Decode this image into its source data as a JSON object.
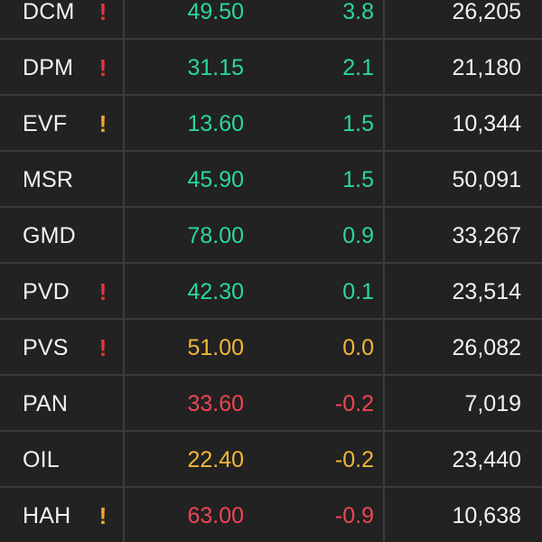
{
  "colors": {
    "up": "#2bd6a0",
    "ref": "#f2b63a",
    "down": "#ef4552",
    "flag_red": "#e8343f",
    "flag_yellow": "#f0a92a"
  },
  "rows": [
    {
      "symbol": "DCM",
      "flag": "!",
      "flag_color": "red",
      "price": "49.50",
      "change": "3.8",
      "volume": "26,205",
      "trend": "up"
    },
    {
      "symbol": "DPM",
      "flag": "!",
      "flag_color": "red",
      "price": "31.15",
      "change": "2.1",
      "volume": "21,180",
      "trend": "up"
    },
    {
      "symbol": "EVF",
      "flag": "!",
      "flag_color": "yellow",
      "price": "13.60",
      "change": "1.5",
      "volume": "10,344",
      "trend": "up"
    },
    {
      "symbol": "MSR",
      "flag": "",
      "flag_color": "",
      "price": "45.90",
      "change": "1.5",
      "volume": "50,091",
      "trend": "up"
    },
    {
      "symbol": "GMD",
      "flag": "",
      "flag_color": "",
      "price": "78.00",
      "change": "0.9",
      "volume": "33,267",
      "trend": "up"
    },
    {
      "symbol": "PVD",
      "flag": "!",
      "flag_color": "red",
      "price": "42.30",
      "change": "0.1",
      "volume": "23,514",
      "trend": "up"
    },
    {
      "symbol": "PVS",
      "flag": "!",
      "flag_color": "red",
      "price": "51.00",
      "change": "0.0",
      "volume": "26,082",
      "trend": "ref"
    },
    {
      "symbol": "PAN",
      "flag": "",
      "flag_color": "",
      "price": "33.60",
      "change": "-0.2",
      "volume": "7,019",
      "trend": "down"
    },
    {
      "symbol": "OIL",
      "flag": "",
      "flag_color": "",
      "price": "22.40",
      "change": "-0.2",
      "volume": "23,440",
      "trend": "ref"
    },
    {
      "symbol": "HAH",
      "flag": "!",
      "flag_color": "yellow",
      "price": "63.00",
      "change": "-0.9",
      "volume": "10,638",
      "trend": "down"
    }
  ]
}
